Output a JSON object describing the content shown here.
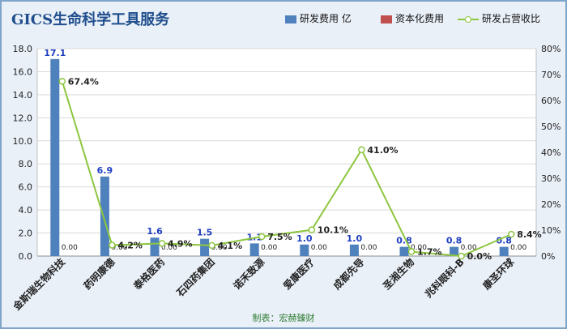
{
  "title": "GICS生命科学工具服务",
  "legend": {
    "rd_expense": "研发费用 亿",
    "capitalized": "资本化费用",
    "rd_ratio": "研发占营收比"
  },
  "footer": "制表：宏赫臻财",
  "colors": {
    "bar_rd": "#4f81bd",
    "bar_cap": "#c0504d",
    "line": "#8dc63f",
    "bar_label": "#1f3fbf",
    "title": "#1f4e8c"
  },
  "chart_data": {
    "type": "bar",
    "categories": [
      "金斯瑞生物科技",
      "药明康德",
      "泰格医药",
      "石四药集团",
      "诺禾致源",
      "爱康医疗",
      "成都先导",
      "圣湘生物",
      "兆科眼科-B",
      "康圣环球"
    ],
    "series": [
      {
        "name": "研发费用 亿",
        "type": "bar",
        "axis": "left",
        "values": [
          17.1,
          6.9,
          1.6,
          1.5,
          1.1,
          1.0,
          1.0,
          0.8,
          0.8,
          0.8
        ]
      },
      {
        "name": "资本化费用",
        "type": "bar",
        "axis": "left",
        "values": [
          0.0,
          0.0,
          0.0,
          0.0,
          0.0,
          0.0,
          0.0,
          0.0,
          0.0,
          0.0
        ]
      },
      {
        "name": "研发占营收比",
        "type": "line",
        "axis": "right",
        "values": [
          67.4,
          4.2,
          4.9,
          4.1,
          7.5,
          10.1,
          41.0,
          1.7,
          0.0,
          8.4
        ]
      }
    ],
    "bar_labels": [
      "17.1",
      "6.9",
      "1.6",
      "1.5",
      "1.1",
      "1.0",
      "1.0",
      "0.8",
      "0.8",
      "0.8"
    ],
    "cap_labels": [
      "0.00",
      "0.00",
      "0.00",
      "0.00",
      "0.00",
      "0.00",
      "0.00",
      "0.00",
      "0.00",
      "0.00"
    ],
    "line_labels": [
      "67.4%",
      "4.2%",
      "4.9%",
      "4.1%",
      "7.5%",
      "10.1%",
      "41.0%",
      "1.7%",
      "0.0%",
      "8.4%"
    ],
    "ylim_left": [
      0,
      18
    ],
    "ylim_right": [
      0,
      80
    ],
    "y_ticks_left": [
      "0.0",
      "2.0",
      "4.0",
      "6.0",
      "8.0",
      "10.0",
      "12.0",
      "14.0",
      "16.0",
      "18.0"
    ],
    "y_ticks_right": [
      "0%",
      "10%",
      "20%",
      "30%",
      "40%",
      "50%",
      "60%",
      "70%",
      "80%"
    ],
    "grid": true,
    "legend_position": "top-right"
  }
}
